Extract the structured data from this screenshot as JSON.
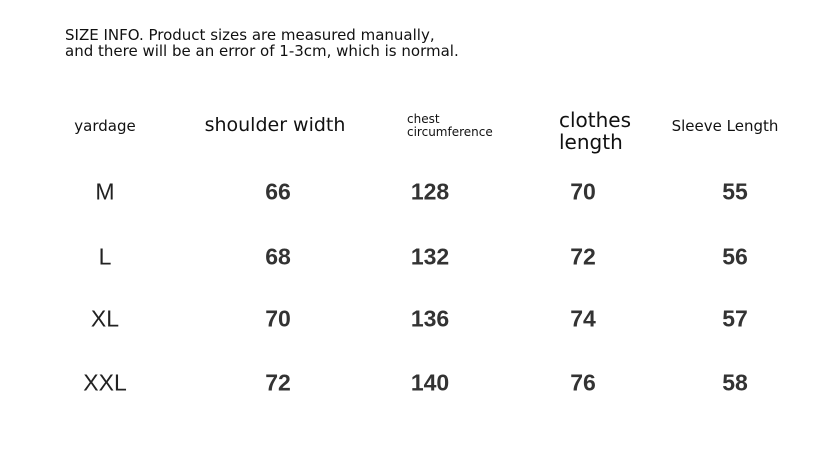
{
  "note": "SIZE INFO. Product sizes are measured manually, and there will be an error of 1-3cm, which is normal.",
  "table": {
    "headers": [
      "yardage",
      "shoulder width",
      "chest circumference",
      "clothes length",
      "Sleeve Length"
    ],
    "header_lines": {
      "chest": [
        "chest",
        "circumference"
      ],
      "clothes": [
        "clothes",
        "length"
      ]
    },
    "rows": [
      [
        "M",
        "66",
        "128",
        "70",
        "55"
      ],
      [
        "L",
        "68",
        "132",
        "72",
        "56"
      ],
      [
        "XL",
        "70",
        "136",
        "74",
        "57"
      ],
      [
        "XXL",
        "72",
        "140",
        "76",
        "58"
      ]
    ]
  }
}
